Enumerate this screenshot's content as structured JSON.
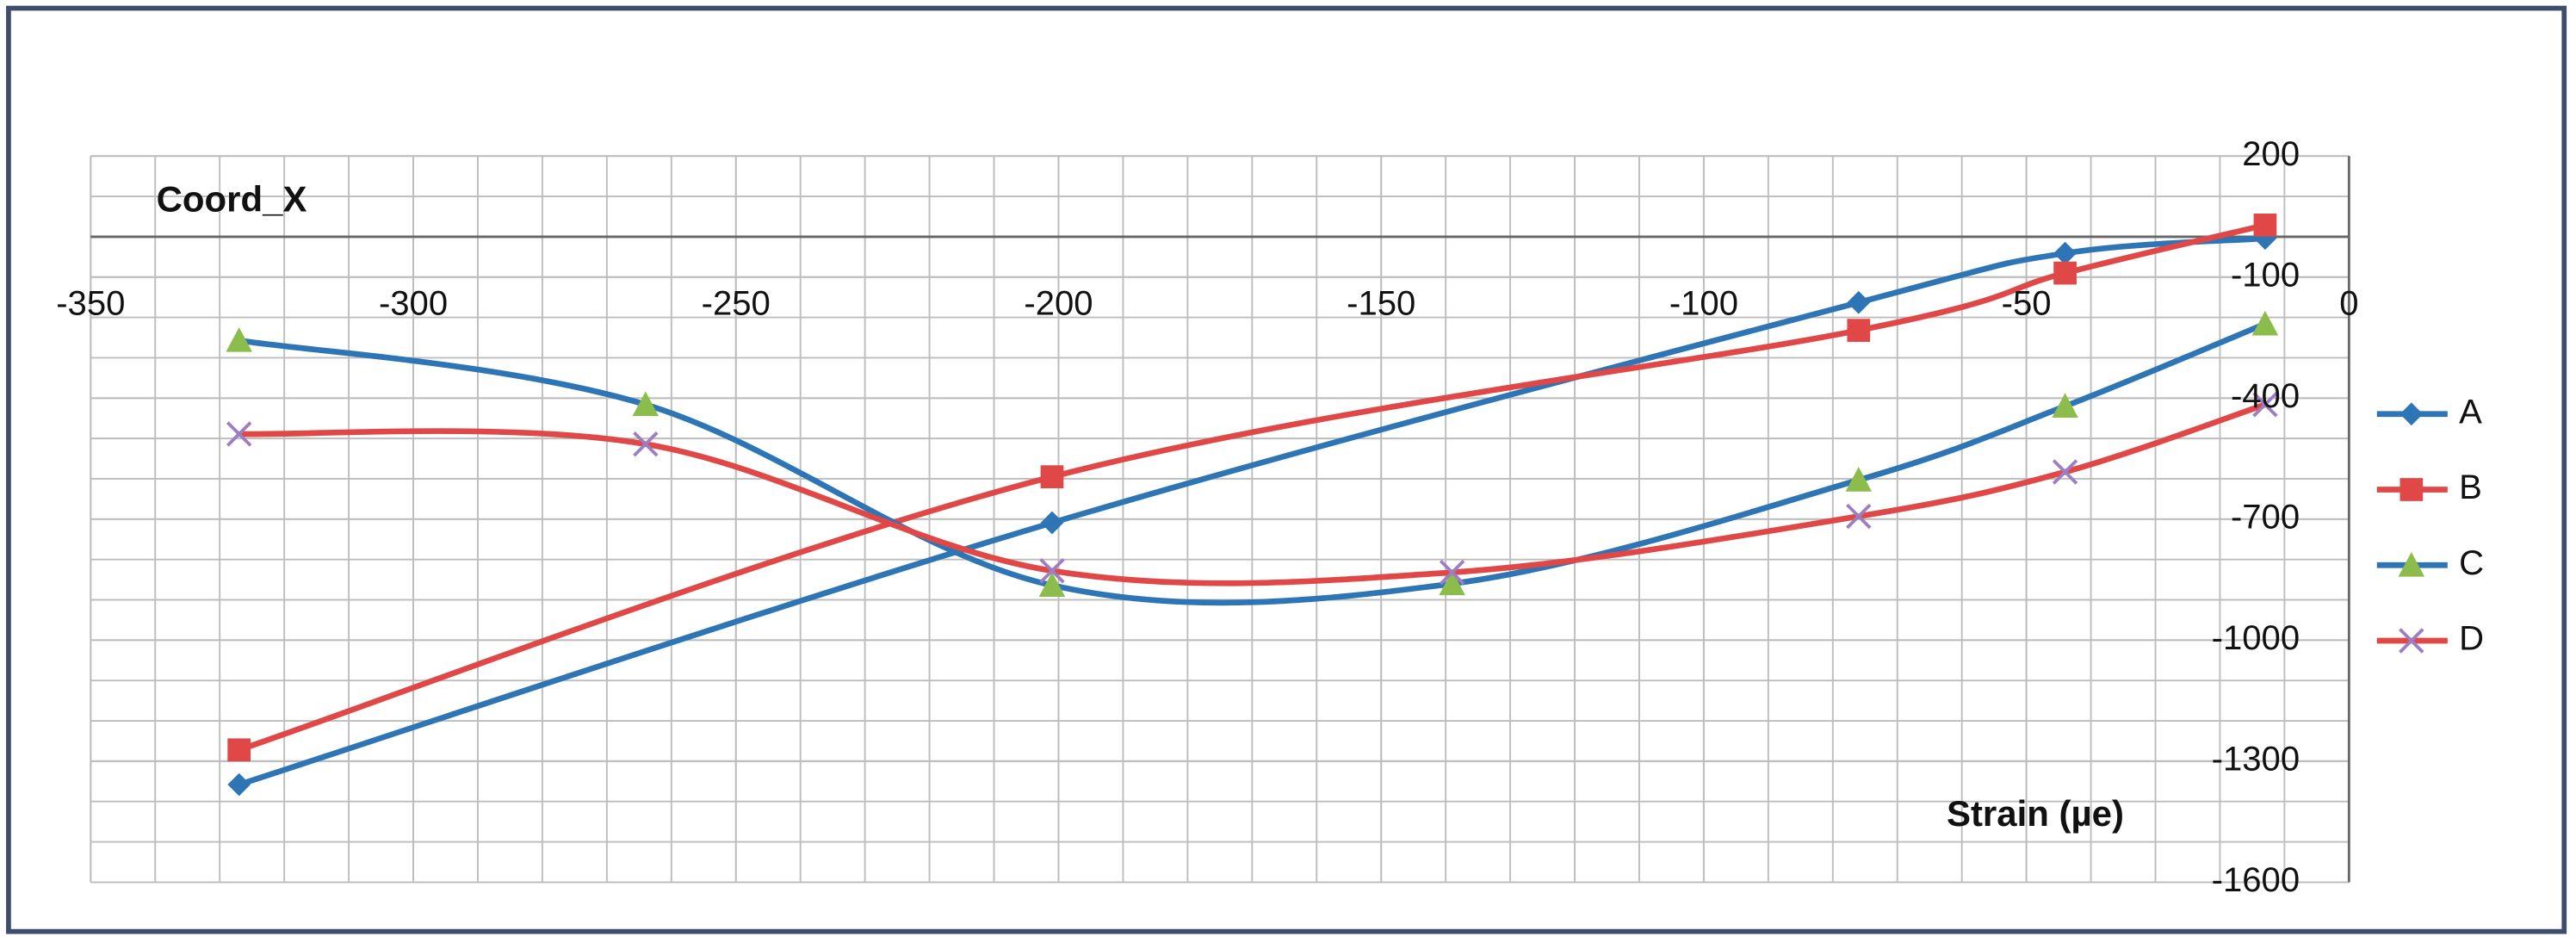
{
  "chart_data": {
    "type": "line",
    "y_axis_label": "Coord_X",
    "x_axis_label": "Strain (µe)",
    "xlim": [
      -350,
      0
    ],
    "xticks": [
      -350,
      -300,
      -250,
      -200,
      -150,
      -100,
      -50,
      0
    ],
    "ylim": [
      -1600,
      200
    ],
    "yticks": [
      200,
      -100,
      -400,
      -700,
      -1000,
      -1300,
      -1600
    ],
    "grid": true,
    "x_grid_step": 10,
    "y_grid_step": 100,
    "smooth": true,
    "legend": "right",
    "series": [
      {
        "name": "A",
        "color": "#2e75b6",
        "marker": "diamond",
        "marker_color": "#2e75b6",
        "x": [
          -327,
          -201,
          -76,
          -44,
          -13
        ],
        "values": [
          -1358,
          -709,
          -163,
          -41,
          -4
        ]
      },
      {
        "name": "B",
        "color": "#e04848",
        "marker": "square",
        "marker_color": "#e04848",
        "x": [
          -327,
          -201,
          -76,
          -44,
          -13
        ],
        "values": [
          -1272,
          -595,
          -232,
          -90,
          29
        ]
      },
      {
        "name": "C",
        "color": "#2e75b6",
        "marker": "triangle",
        "marker_color": "#8cbd4c",
        "x": [
          -327,
          -264,
          -201,
          -139,
          -76,
          -44,
          -13
        ],
        "values": [
          -257,
          -416,
          -864,
          -860,
          -603,
          -420,
          -216
        ]
      },
      {
        "name": "D",
        "color": "#e04848",
        "marker": "cross",
        "marker_color": "#9b7fc0",
        "x": [
          -327,
          -264,
          -201,
          -139,
          -76,
          -44,
          -13
        ],
        "values": [
          -489,
          -514,
          -828,
          -832,
          -693,
          -583,
          -416
        ]
      }
    ]
  }
}
